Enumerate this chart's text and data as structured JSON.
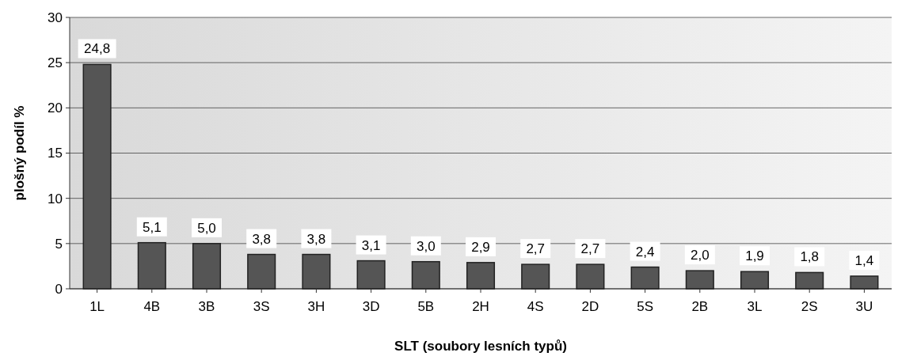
{
  "chart_data": {
    "type": "bar",
    "xlabel": "SLT (soubory lesních typů)",
    "ylabel": "plošný podíl %",
    "categories": [
      "1L",
      "4B",
      "3B",
      "3S",
      "3H",
      "3D",
      "5B",
      "2H",
      "4S",
      "2D",
      "5S",
      "2B",
      "3L",
      "2S",
      "3U"
    ],
    "values": [
      24.8,
      5.1,
      5.0,
      3.8,
      3.8,
      3.1,
      3.0,
      2.9,
      2.7,
      2.7,
      2.4,
      2.0,
      1.9,
      1.8,
      1.4
    ],
    "value_labels": [
      "24,8",
      "5,1",
      "5,0",
      "3,8",
      "3,8",
      "3,1",
      "3,0",
      "2,9",
      "2,7",
      "2,7",
      "2,4",
      "2,0",
      "1,9",
      "1,8",
      "1,4"
    ],
    "color": "#555555",
    "ylim": [
      0,
      30
    ],
    "yticks": [
      0,
      5,
      10,
      15,
      20,
      25,
      30
    ],
    "grid": "y"
  }
}
